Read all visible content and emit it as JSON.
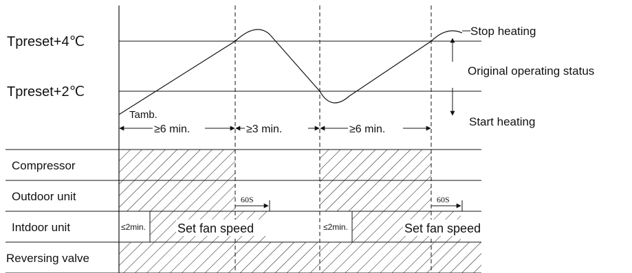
{
  "levels": {
    "upper": "Tpreset+4℃",
    "lower": "Tpreset+2℃",
    "ambient": "Tamb."
  },
  "intervals": [
    "≥6 min.",
    "≥3 min.",
    "≥6 min."
  ],
  "status": {
    "stop": "Stop heating",
    "original": "Original operating status",
    "start": "Start heating"
  },
  "rows": {
    "compressor": "Compressor",
    "outdoor": "Outdoor unit",
    "indoor": "Intdoor unit",
    "valve": "Reversing valve"
  },
  "indoor": {
    "delay_1": "≤2min.",
    "delay_2": "≤2min.",
    "fan_1": "Set fan speed",
    "fan_2": "Set fan speed",
    "timer_1": "60S",
    "timer_2": "60S"
  }
}
